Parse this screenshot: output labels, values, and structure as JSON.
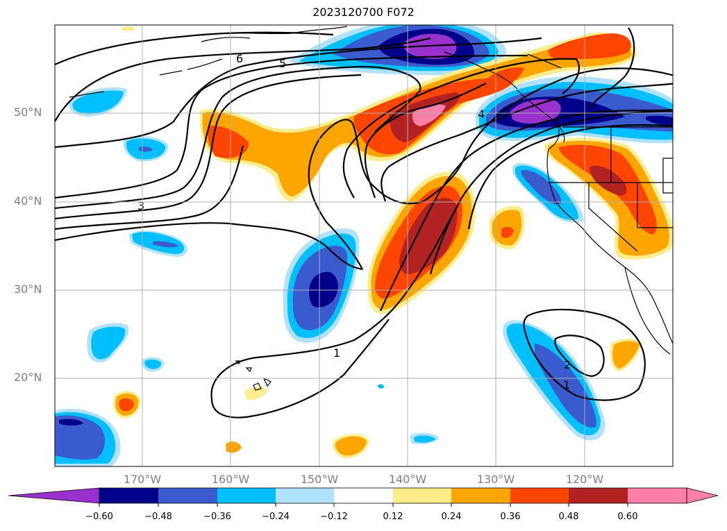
{
  "title": "2023120700 F072",
  "map": {
    "lat_labels": [
      "50°N",
      "40°N",
      "30°N",
      "20°N"
    ],
    "lon_labels": [
      "170°W",
      "160°W",
      "150°W",
      "140°W",
      "130°W",
      "120°W"
    ],
    "contour_labels": [
      "6",
      "5",
      "3",
      "1",
      "2",
      "1",
      "4"
    ]
  },
  "colorbar": {
    "ticks": [
      "−0.60",
      "−0.48",
      "−0.36",
      "−0.24",
      "−0.12",
      "0.12",
      "0.24",
      "0.36",
      "0.48",
      "0.60"
    ],
    "colors": [
      "#9932cc",
      "#00008b",
      "#3a5bcd",
      "#00bfff",
      "#b0e2ff",
      "#ffffff",
      "#ffec8b",
      "#ffa500",
      "#ff4500",
      "#b22222",
      "#ff7fa8"
    ]
  }
}
